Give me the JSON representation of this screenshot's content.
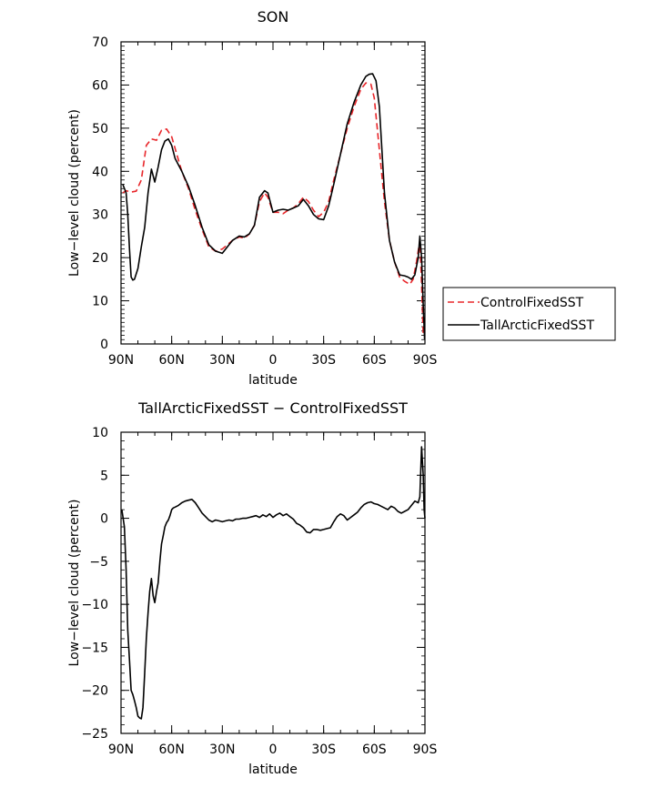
{
  "chart_data": [
    {
      "type": "line",
      "title": "SON",
      "xlabel": "latitude",
      "ylabel": "Low−level cloud (percent)",
      "xlim": [
        90,
        -90
      ],
      "ylim": [
        0,
        70
      ],
      "xticks": [
        90,
        60,
        30,
        0,
        -30,
        -60,
        -90
      ],
      "xtick_labels": [
        "90N",
        "60N",
        "30N",
        "0",
        "30S",
        "60S",
        "90S"
      ],
      "yticks": [
        0,
        10,
        20,
        30,
        40,
        50,
        60,
        70
      ],
      "ytick_labels": [
        "0",
        "10",
        "20",
        "30",
        "40",
        "50",
        "60",
        "70"
      ],
      "legend_position": "right",
      "series": [
        {
          "name": "ControlFixedSST",
          "color": "#e8262a",
          "dash": "dashed",
          "x": [
            89,
            87,
            84,
            81,
            78,
            75,
            72,
            69,
            66,
            63,
            60,
            57,
            54,
            50,
            46,
            42,
            38,
            34,
            30,
            27,
            24,
            20,
            17,
            14,
            11,
            8,
            5,
            3,
            0,
            -3,
            -6,
            -9,
            -12,
            -15,
            -18,
            -21,
            -24,
            -27,
            -30,
            -33,
            -36,
            -40,
            -44,
            -48,
            -52,
            -55,
            -58,
            -60,
            -63,
            -66,
            -69,
            -72,
            -75,
            -78,
            -81,
            -83,
            -85,
            -87,
            -88,
            -89
          ],
          "y": [
            35,
            35.5,
            35.2,
            35.4,
            38,
            46,
            47.5,
            47.2,
            49.5,
            49.8,
            48,
            44,
            40,
            36,
            31,
            26.5,
            22.5,
            21.5,
            22,
            23,
            24,
            24.8,
            24.5,
            25.5,
            27.5,
            33,
            35,
            34,
            30.5,
            30.5,
            30.2,
            31,
            31.5,
            32.5,
            34,
            33,
            31,
            29.5,
            30.5,
            33,
            38,
            44,
            50,
            55,
            59,
            60.5,
            60.2,
            57,
            45,
            33,
            24,
            19,
            15.5,
            14.5,
            13.8,
            15,
            19,
            24,
            14,
            2
          ]
        },
        {
          "name": "TallArcticFixedSST",
          "color": "#000000",
          "dash": "solid",
          "x": [
            89,
            87,
            86,
            85,
            84,
            83,
            82,
            80,
            78,
            76,
            74,
            72,
            70,
            68,
            66,
            64,
            62,
            60,
            58,
            54,
            50,
            46,
            42,
            38,
            34,
            30,
            27,
            24,
            20,
            17,
            14,
            11,
            8,
            5,
            3,
            0,
            -3,
            -6,
            -9,
            -12,
            -15,
            -18,
            -21,
            -24,
            -27,
            -30,
            -33,
            -36,
            -40,
            -44,
            -48,
            -52,
            -55,
            -57,
            -59,
            -61,
            -63,
            -66,
            -69,
            -72,
            -75,
            -78,
            -80,
            -82,
            -84,
            -86,
            -87,
            -88,
            -89,
            -89.8
          ],
          "y": [
            37,
            35,
            30,
            22,
            15.5,
            14.8,
            15,
            17.5,
            22.5,
            27,
            35,
            40.5,
            37.5,
            41,
            45,
            47,
            47.5,
            46,
            43,
            40,
            36.5,
            32,
            27,
            23,
            21.5,
            21,
            22.5,
            24,
            25,
            24.8,
            25.5,
            27.5,
            34,
            35.5,
            35,
            30.5,
            31,
            31.2,
            31,
            31.5,
            32,
            33.5,
            32,
            30,
            29,
            28.8,
            32,
            37,
            44,
            51,
            56,
            60,
            62,
            62.5,
            62.6,
            61,
            55,
            35,
            24,
            19,
            16,
            15.8,
            15.5,
            15,
            16,
            20,
            25,
            20,
            9,
            1
          ]
        }
      ]
    },
    {
      "type": "line",
      "title": "TallArcticFixedSST − ControlFixedSST",
      "xlabel": "latitude",
      "ylabel": "Low−level cloud (percent)",
      "xlim": [
        90,
        -90
      ],
      "ylim": [
        -25,
        10
      ],
      "xticks": [
        90,
        60,
        30,
        0,
        -30,
        -60,
        -90
      ],
      "xtick_labels": [
        "90N",
        "60N",
        "30N",
        "0",
        "30S",
        "60S",
        "90S"
      ],
      "yticks": [
        -25,
        -20,
        -15,
        -10,
        -5,
        0,
        5,
        10
      ],
      "ytick_labels": [
        "−25",
        "−20",
        "−15",
        "−10",
        "−5",
        "0",
        "5",
        "10"
      ],
      "series": [
        {
          "name": "",
          "color": "#000000",
          "dash": "solid",
          "x": [
            89.5,
            88,
            87,
            86,
            85,
            84,
            83,
            82,
            81,
            80,
            79,
            78,
            77,
            76,
            75,
            74,
            73,
            72,
            71,
            70,
            69,
            68,
            67,
            66,
            65,
            64,
            63,
            62,
            61,
            60,
            59,
            58,
            56,
            54,
            52,
            50,
            48,
            46,
            44,
            42,
            40,
            38,
            36,
            34,
            32,
            30,
            28,
            26,
            24,
            22,
            20,
            18,
            16,
            14,
            12,
            10,
            8,
            6,
            4,
            2,
            0,
            -2,
            -4,
            -6,
            -8,
            -10,
            -12,
            -14,
            -16,
            -18,
            -20,
            -22,
            -24,
            -26,
            -28,
            -30,
            -32,
            -34,
            -36,
            -38,
            -40,
            -42,
            -44,
            -46,
            -48,
            -50,
            -52,
            -54,
            -56,
            -58,
            -60,
            -62,
            -64,
            -66,
            -68,
            -70,
            -72,
            -74,
            -76,
            -78,
            -80,
            -82,
            -84,
            -86,
            -87,
            -88,
            -89,
            -89.5,
            -90
          ],
          "y": [
            1,
            -1,
            -6,
            -13,
            -16.5,
            -20,
            -20.5,
            -21.2,
            -22,
            -23,
            -23.2,
            -23.3,
            -22,
            -18,
            -14,
            -11,
            -8.5,
            -7,
            -9,
            -9.8,
            -8.5,
            -7.5,
            -5,
            -3,
            -2,
            -1,
            -0.5,
            -0.2,
            0.3,
            1,
            1.2,
            1.3,
            1.5,
            1.8,
            2,
            2.1,
            2.2,
            1.8,
            1.2,
            0.6,
            0.2,
            -0.2,
            -0.4,
            -0.2,
            -0.3,
            -0.4,
            -0.3,
            -0.2,
            -0.3,
            -0.1,
            -0.1,
            0,
            0,
            0.1,
            0.2,
            0.3,
            0.1,
            0.4,
            0.2,
            0.5,
            0.1,
            0.4,
            0.6,
            0.3,
            0.5,
            0.2,
            -0.1,
            -0.6,
            -0.8,
            -1.1,
            -1.6,
            -1.7,
            -1.3,
            -1.3,
            -1.4,
            -1.3,
            -1.2,
            -1.1,
            -0.4,
            0.2,
            0.5,
            0.3,
            -0.2,
            0.1,
            0.4,
            0.7,
            1.2,
            1.6,
            1.8,
            1.9,
            1.7,
            1.6,
            1.4,
            1.2,
            1,
            1.4,
            1.2,
            0.8,
            0.6,
            0.8,
            1,
            1.5,
            2,
            1.8,
            2.5,
            8.3,
            5,
            1,
            0
          ]
        }
      ]
    }
  ]
}
